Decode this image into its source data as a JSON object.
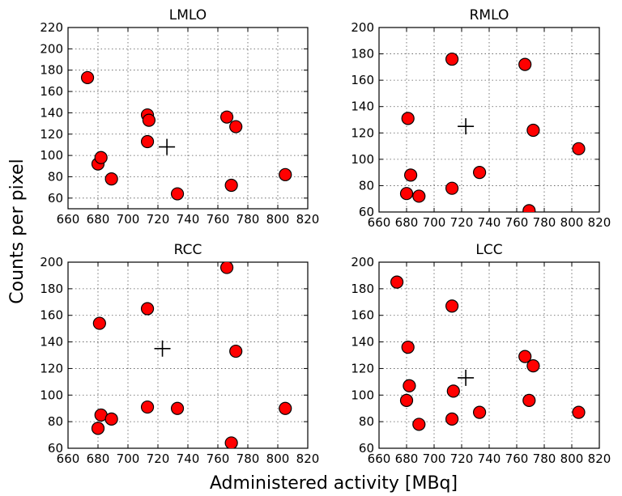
{
  "figure": {
    "ylabel": "Counts per pixel",
    "xlabel": "Administered activity [MBq]"
  },
  "chart_data": [
    {
      "type": "scatter",
      "title": "LMLO",
      "xlim": [
        660,
        820
      ],
      "ylim": [
        50,
        220
      ],
      "xticks": [
        660,
        680,
        700,
        720,
        740,
        760,
        780,
        800,
        820
      ],
      "yticks": [
        60,
        80,
        100,
        120,
        140,
        160,
        180,
        200,
        220
      ],
      "grid": true,
      "marker_color": "#ff0000",
      "points": [
        [
          673,
          173
        ],
        [
          680,
          92
        ],
        [
          682,
          98
        ],
        [
          689,
          78
        ],
        [
          713,
          138
        ],
        [
          713,
          113
        ],
        [
          714,
          133
        ],
        [
          733,
          64
        ],
        [
          766,
          136
        ],
        [
          769,
          72
        ],
        [
          772,
          127
        ],
        [
          805,
          82
        ]
      ],
      "mean_marker": [
        726,
        108
      ]
    },
    {
      "type": "scatter",
      "title": "RMLO",
      "xlim": [
        660,
        820
      ],
      "ylim": [
        60,
        200
      ],
      "xticks": [
        660,
        680,
        700,
        720,
        740,
        760,
        780,
        800,
        820
      ],
      "yticks": [
        60,
        80,
        100,
        120,
        140,
        160,
        180,
        200
      ],
      "grid": true,
      "marker_color": "#ff0000",
      "points": [
        [
          681,
          131
        ],
        [
          683,
          88
        ],
        [
          680,
          74
        ],
        [
          689,
          72
        ],
        [
          713,
          176
        ],
        [
          713,
          78
        ],
        [
          733,
          90
        ],
        [
          766,
          172
        ],
        [
          772,
          122
        ],
        [
          769,
          61
        ],
        [
          805,
          108
        ]
      ],
      "mean_marker": [
        723,
        125
      ]
    },
    {
      "type": "scatter",
      "title": "RCC",
      "xlim": [
        660,
        820
      ],
      "ylim": [
        60,
        200
      ],
      "xticks": [
        660,
        680,
        700,
        720,
        740,
        760,
        780,
        800,
        820
      ],
      "yticks": [
        60,
        80,
        100,
        120,
        140,
        160,
        180,
        200
      ],
      "grid": true,
      "marker_color": "#ff0000",
      "points": [
        [
          681,
          154
        ],
        [
          682,
          85
        ],
        [
          680,
          75
        ],
        [
          689,
          82
        ],
        [
          713,
          165
        ],
        [
          713,
          91
        ],
        [
          733,
          90
        ],
        [
          766,
          196
        ],
        [
          772,
          133
        ],
        [
          769,
          64
        ],
        [
          805,
          90
        ]
      ],
      "mean_marker": [
        723,
        135
      ]
    },
    {
      "type": "scatter",
      "title": "LCC",
      "xlim": [
        660,
        820
      ],
      "ylim": [
        60,
        200
      ],
      "xticks": [
        660,
        680,
        700,
        720,
        740,
        760,
        780,
        800,
        820
      ],
      "yticks": [
        60,
        80,
        100,
        120,
        140,
        160,
        180,
        200
      ],
      "grid": true,
      "marker_color": "#ff0000",
      "points": [
        [
          673,
          185
        ],
        [
          681,
          136
        ],
        [
          682,
          107
        ],
        [
          680,
          96
        ],
        [
          689,
          78
        ],
        [
          713,
          167
        ],
        [
          714,
          103
        ],
        [
          713,
          82
        ],
        [
          733,
          87
        ],
        [
          766,
          129
        ],
        [
          772,
          122
        ],
        [
          769,
          96
        ],
        [
          805,
          87
        ]
      ],
      "mean_marker": [
        723,
        113
      ]
    }
  ]
}
